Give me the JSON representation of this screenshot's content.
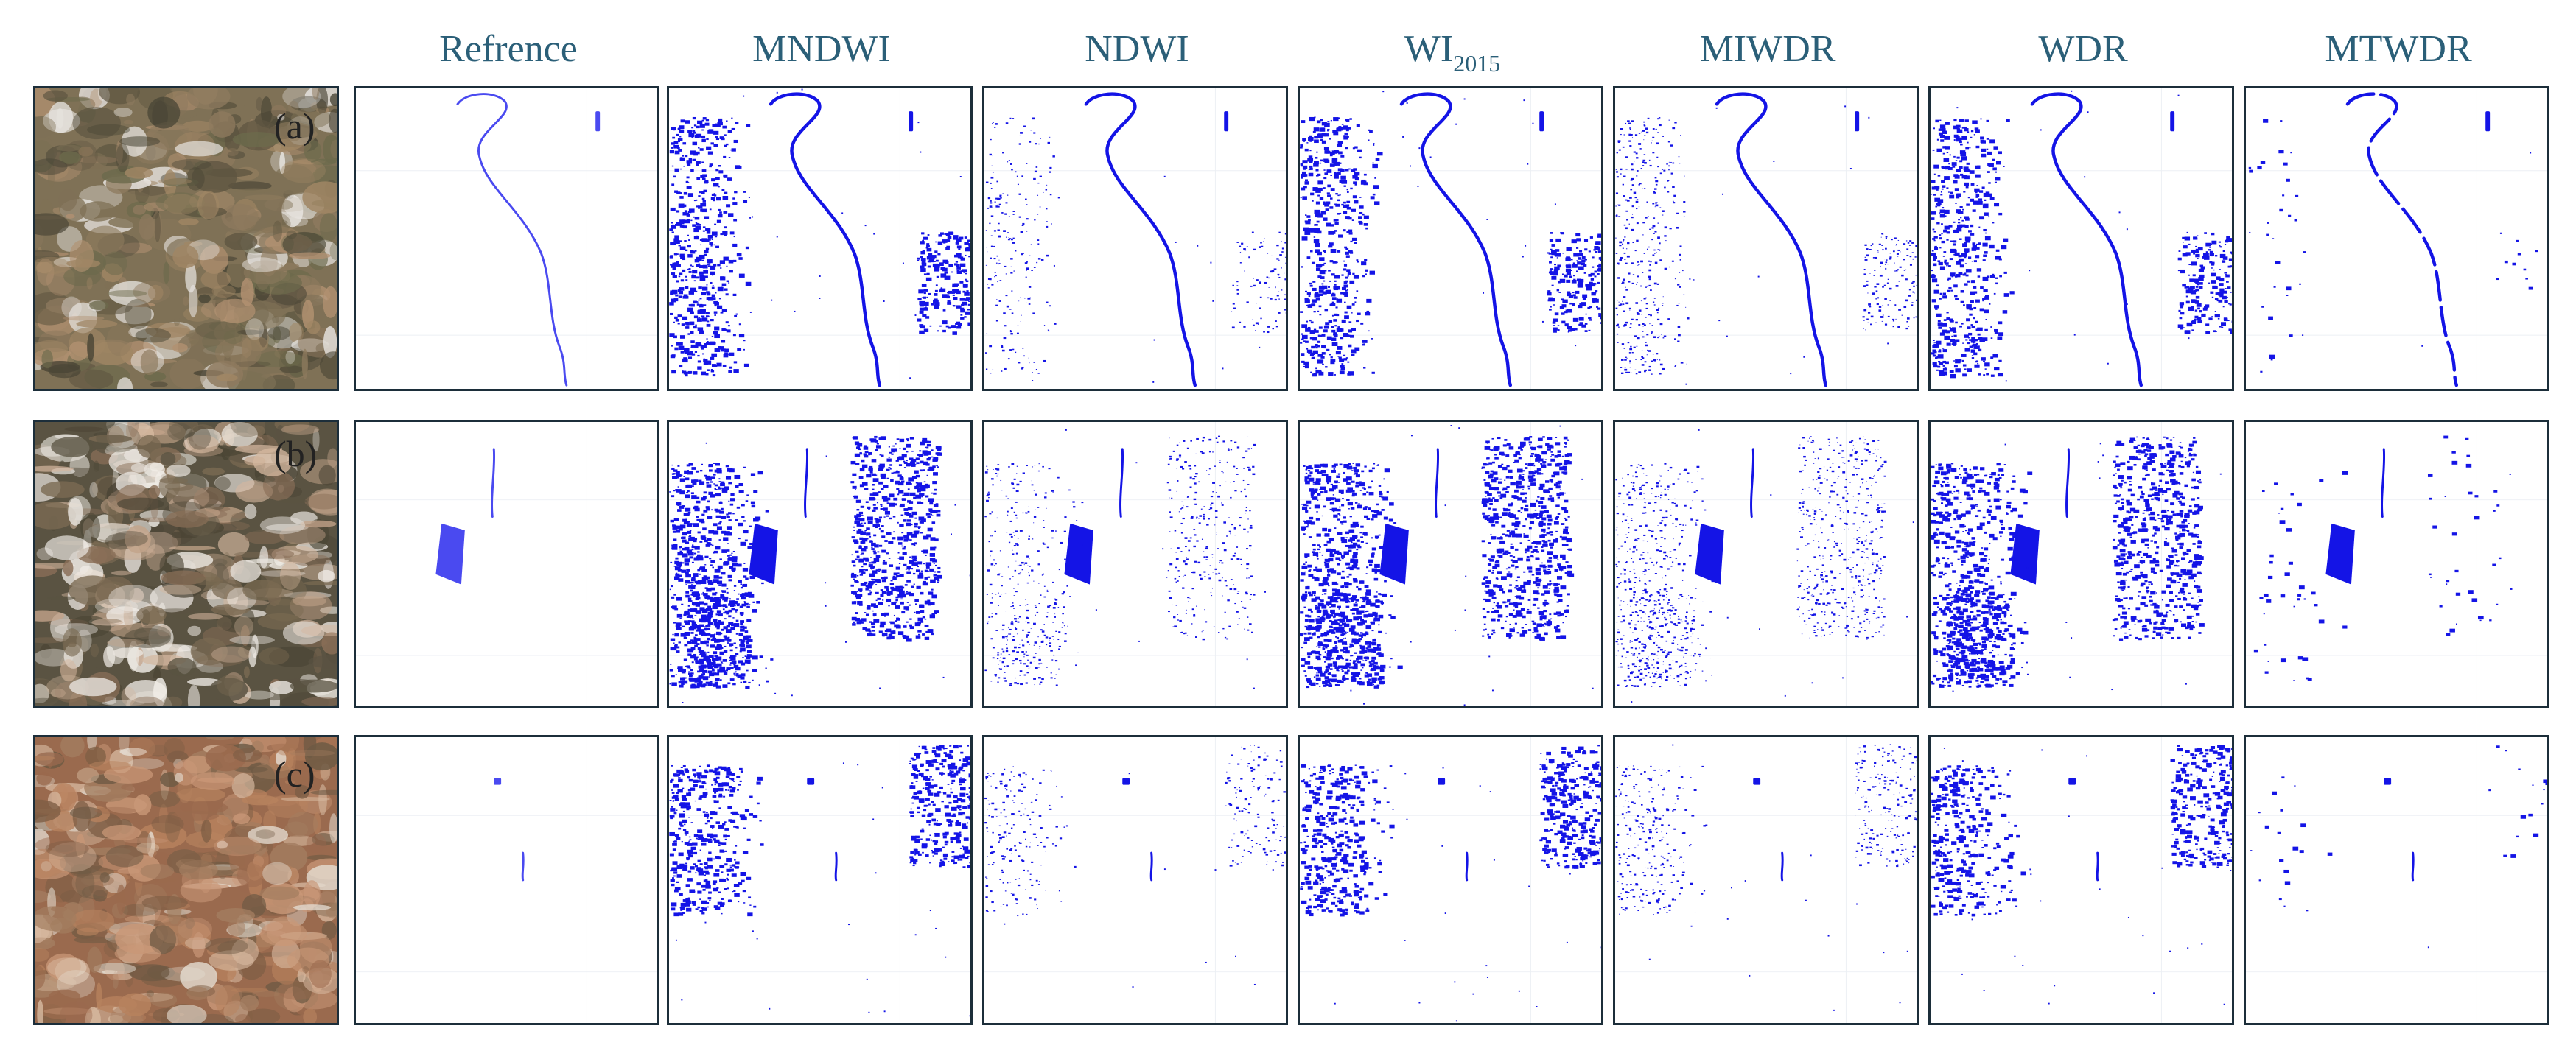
{
  "figure": {
    "columns": [
      {
        "key": "image",
        "label": ""
      },
      {
        "key": "reference",
        "label": "Refrence"
      },
      {
        "key": "mndwi",
        "label": "MNDWI"
      },
      {
        "key": "ndwi",
        "label": "NDWI"
      },
      {
        "key": "wi2015",
        "label": "WI",
        "label_sub": "2015"
      },
      {
        "key": "miwdr",
        "label": "MIWDR"
      },
      {
        "key": "wdr",
        "label": "WDR"
      },
      {
        "key": "mtwdr",
        "label": "MTWDR"
      }
    ],
    "rows": [
      {
        "label": "(a)"
      },
      {
        "label": "(b)"
      },
      {
        "label": "(c)"
      }
    ],
    "colors": {
      "water_mask": "#1414e6",
      "reference_mask": "#4a4af0",
      "panel_border": "#1c2e3a",
      "header_text": "#2b5f78"
    }
  }
}
